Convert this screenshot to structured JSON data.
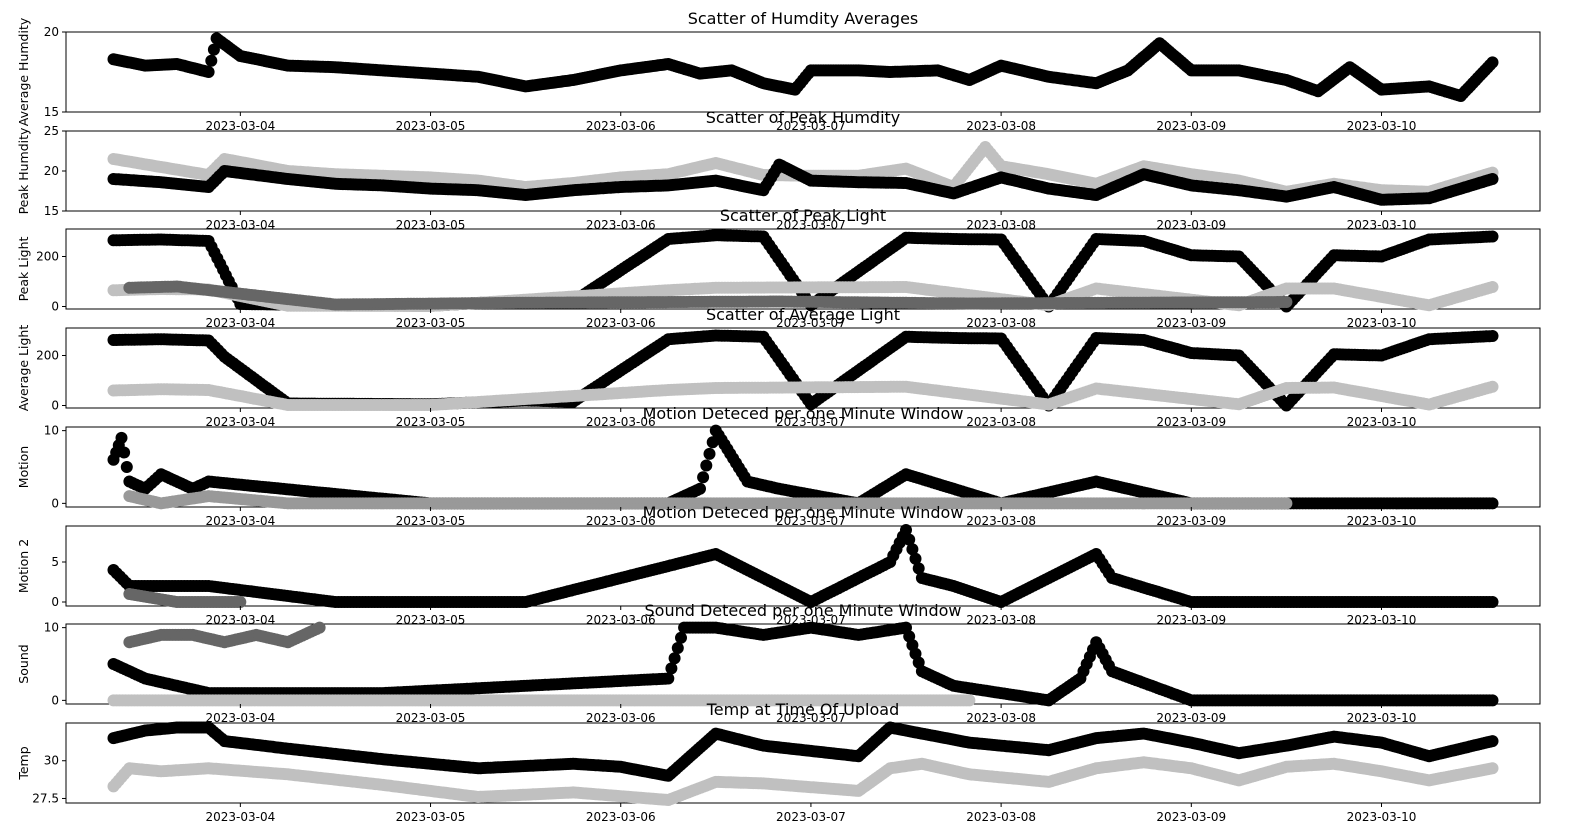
{
  "figure": {
    "x_ticks": [
      "2023-03-04",
      "2023-03-05",
      "2023-03-06",
      "2023-03-07",
      "2023-03-08",
      "2023-03-09",
      "2023-03-10"
    ],
    "x_range": [
      "2023-03-03 02:00",
      "2023-03-10 20:00"
    ]
  },
  "colors": {
    "series_dark": "#000000",
    "series_mid": "#666666",
    "series_light": "#c0c0c0",
    "axes": "#000000",
    "background": "#ffffff"
  },
  "chart_data": [
    {
      "type": "scatter",
      "title": "Scatter of Humdity Averages",
      "ylabel": "Average Humdity",
      "ylim": [
        15,
        20
      ],
      "yticks": [
        15,
        20
      ],
      "series": [
        {
          "color": "#000000",
          "x": [
            "2023-03-03 08:00",
            "2023-03-03 12:00",
            "2023-03-03 16:00",
            "2023-03-03 20:00",
            "2023-03-03 21:00",
            "2023-03-04 00:00",
            "2023-03-04 06:00",
            "2023-03-04 12:00",
            "2023-03-04 18:00",
            "2023-03-05 00:00",
            "2023-03-05 06:00",
            "2023-03-05 12:00",
            "2023-03-05 18:00",
            "2023-03-06 00:00",
            "2023-03-06 06:00",
            "2023-03-06 10:00",
            "2023-03-06 14:00",
            "2023-03-06 18:00",
            "2023-03-06 22:00",
            "2023-03-07 00:00",
            "2023-03-07 06:00",
            "2023-03-07 10:00",
            "2023-03-07 16:00",
            "2023-03-07 20:00",
            "2023-03-08 00:00",
            "2023-03-08 06:00",
            "2023-03-08 12:00",
            "2023-03-08 16:00",
            "2023-03-08 20:00",
            "2023-03-09 00:00",
            "2023-03-09 06:00",
            "2023-03-09 12:00",
            "2023-03-09 16:00",
            "2023-03-09 20:00",
            "2023-03-10 00:00",
            "2023-03-10 06:00",
            "2023-03-10 10:00",
            "2023-03-10 14:00"
          ],
          "y": [
            18.3,
            17.9,
            18.0,
            17.5,
            19.6,
            18.5,
            17.9,
            17.8,
            17.6,
            17.4,
            17.2,
            16.6,
            17.0,
            17.6,
            18.0,
            17.4,
            17.6,
            16.8,
            16.4,
            17.6,
            17.6,
            17.5,
            17.6,
            17.0,
            17.9,
            17.2,
            16.8,
            17.6,
            19.3,
            17.6,
            17.6,
            17.0,
            16.3,
            17.8,
            16.4,
            16.6,
            16.0,
            18.1
          ]
        }
      ]
    },
    {
      "type": "scatter",
      "title": "Scatter of Peak Humdity",
      "ylabel": "Peak Humdity",
      "ylim": [
        15,
        25
      ],
      "yticks": [
        15,
        20,
        25
      ],
      "series": [
        {
          "color": "#c0c0c0",
          "x": [
            "2023-03-03 08:00",
            "2023-03-03 14:00",
            "2023-03-03 20:00",
            "2023-03-03 22:00",
            "2023-03-04 06:00",
            "2023-03-04 12:00",
            "2023-03-04 18:00",
            "2023-03-05 00:00",
            "2023-03-05 06:00",
            "2023-03-05 12:00",
            "2023-03-05 18:00",
            "2023-03-06 00:00",
            "2023-03-06 06:00",
            "2023-03-06 12:00",
            "2023-03-06 18:00",
            "2023-03-07 00:00",
            "2023-03-07 06:00",
            "2023-03-07 12:00",
            "2023-03-07 18:00",
            "2023-03-07 22:00",
            "2023-03-08 00:00",
            "2023-03-08 06:00",
            "2023-03-08 12:00",
            "2023-03-08 18:00",
            "2023-03-09 00:00",
            "2023-03-09 06:00",
            "2023-03-09 12:00",
            "2023-03-09 18:00",
            "2023-03-10 00:00",
            "2023-03-10 06:00",
            "2023-03-10 14:00"
          ],
          "y": [
            21.5,
            20.5,
            19.5,
            21.5,
            20.0,
            19.6,
            19.4,
            19.2,
            18.8,
            18.0,
            18.5,
            19.2,
            19.6,
            21.0,
            19.5,
            19.4,
            19.4,
            20.3,
            18.0,
            23.0,
            20.6,
            19.6,
            18.4,
            20.6,
            19.6,
            18.8,
            17.4,
            18.4,
            17.6,
            17.4,
            19.8
          ]
        },
        {
          "color": "#000000",
          "x": [
            "2023-03-03 08:00",
            "2023-03-03 14:00",
            "2023-03-03 20:00",
            "2023-03-03 22:00",
            "2023-03-04 06:00",
            "2023-03-04 12:00",
            "2023-03-04 18:00",
            "2023-03-05 00:00",
            "2023-03-05 06:00",
            "2023-03-05 12:00",
            "2023-03-05 18:00",
            "2023-03-06 00:00",
            "2023-03-06 06:00",
            "2023-03-06 12:00",
            "2023-03-06 18:00",
            "2023-03-06 20:00",
            "2023-03-07 00:00",
            "2023-03-07 06:00",
            "2023-03-07 12:00",
            "2023-03-07 18:00",
            "2023-03-08 00:00",
            "2023-03-08 06:00",
            "2023-03-08 12:00",
            "2023-03-08 18:00",
            "2023-03-09 00:00",
            "2023-03-09 06:00",
            "2023-03-09 12:00",
            "2023-03-09 18:00",
            "2023-03-10 00:00",
            "2023-03-10 06:00",
            "2023-03-10 14:00"
          ],
          "y": [
            19.0,
            18.6,
            18.0,
            20.0,
            19.0,
            18.4,
            18.2,
            17.8,
            17.6,
            17.0,
            17.6,
            18.0,
            18.2,
            18.8,
            17.6,
            20.8,
            18.8,
            18.6,
            18.5,
            17.2,
            19.2,
            17.8,
            17.0,
            19.6,
            18.2,
            17.6,
            16.8,
            18.0,
            16.4,
            16.6,
            19.0
          ]
        }
      ]
    },
    {
      "type": "scatter",
      "title": "Scatter of Peak Light",
      "ylabel": "Peak Light",
      "ylim": [
        -10,
        310
      ],
      "yticks": [
        0,
        200
      ],
      "series": [
        {
          "color": "#000000",
          "x": [
            "2023-03-03 08:00",
            "2023-03-03 14:00",
            "2023-03-03 20:00",
            "2023-03-04 00:00",
            "2023-03-04 12:00",
            "2023-03-05 00:00",
            "2023-03-05 12:00",
            "2023-03-05 18:00",
            "2023-03-06 06:00",
            "2023-03-06 12:00",
            "2023-03-06 18:00",
            "2023-03-07 00:00",
            "2023-03-07 12:00",
            "2023-03-07 18:00",
            "2023-03-08 00:00",
            "2023-03-08 06:00",
            "2023-03-08 12:00",
            "2023-03-08 18:00",
            "2023-03-09 00:00",
            "2023-03-09 06:00",
            "2023-03-09 12:00",
            "2023-03-09 18:00",
            "2023-03-10 00:00",
            "2023-03-10 06:00",
            "2023-03-10 14:00"
          ],
          "y": [
            265,
            268,
            262,
            10,
            5,
            3,
            25,
            20,
            270,
            285,
            280,
            5,
            275,
            270,
            268,
            0,
            270,
            262,
            205,
            200,
            0,
            205,
            200,
            268,
            280
          ]
        },
        {
          "color": "#c0c0c0",
          "x": [
            "2023-03-03 08:00",
            "2023-03-03 14:00",
            "2023-03-03 20:00",
            "2023-03-04 06:00",
            "2023-03-05 00:00",
            "2023-03-06 06:00",
            "2023-03-06 12:00",
            "2023-03-07 12:00",
            "2023-03-08 06:00",
            "2023-03-08 12:00",
            "2023-03-09 06:00",
            "2023-03-09 12:00",
            "2023-03-09 18:00",
            "2023-03-10 06:00",
            "2023-03-10 14:00"
          ],
          "y": [
            65,
            70,
            68,
            3,
            2,
            65,
            75,
            78,
            5,
            72,
            5,
            72,
            72,
            5,
            78
          ]
        },
        {
          "color": "#666666",
          "x": [
            "2023-03-03 10:00",
            "2023-03-03 16:00",
            "2023-03-04 12:00",
            "2023-03-05 12:00",
            "2023-03-06 20:00",
            "2023-03-07 20:00",
            "2023-03-09 12:00"
          ],
          "y": [
            75,
            80,
            8,
            15,
            20,
            12,
            18
          ]
        }
      ]
    },
    {
      "type": "scatter",
      "title": "Scatter of Average Light",
      "ylabel": "Average Light",
      "ylim": [
        -10,
        310
      ],
      "yticks": [
        0,
        200
      ],
      "series": [
        {
          "color": "#000000",
          "x": [
            "2023-03-03 08:00",
            "2023-03-03 14:00",
            "2023-03-03 20:00",
            "2023-03-03 22:00",
            "2023-03-04 06:00",
            "2023-03-05 00:00",
            "2023-03-05 12:00",
            "2023-03-05 18:00",
            "2023-03-06 06:00",
            "2023-03-06 12:00",
            "2023-03-06 18:00",
            "2023-03-07 00:00",
            "2023-03-07 12:00",
            "2023-03-07 18:00",
            "2023-03-08 00:00",
            "2023-03-08 06:00",
            "2023-03-08 12:00",
            "2023-03-08 18:00",
            "2023-03-09 00:00",
            "2023-03-09 06:00",
            "2023-03-09 12:00",
            "2023-03-09 18:00",
            "2023-03-10 00:00",
            "2023-03-10 06:00",
            "2023-03-10 14:00"
          ],
          "y": [
            262,
            265,
            260,
            195,
            8,
            5,
            20,
            15,
            265,
            280,
            275,
            5,
            275,
            270,
            268,
            0,
            270,
            262,
            210,
            200,
            0,
            205,
            200,
            265,
            278
          ]
        },
        {
          "color": "#c0c0c0",
          "x": [
            "2023-03-03 08:00",
            "2023-03-03 14:00",
            "2023-03-03 20:00",
            "2023-03-04 06:00",
            "2023-03-05 00:00",
            "2023-03-06 06:00",
            "2023-03-06 12:00",
            "2023-03-07 12:00",
            "2023-03-08 06:00",
            "2023-03-08 12:00",
            "2023-03-09 06:00",
            "2023-03-09 12:00",
            "2023-03-09 18:00",
            "2023-03-10 06:00",
            "2023-03-10 14:00"
          ],
          "y": [
            60,
            65,
            62,
            2,
            2,
            62,
            70,
            75,
            4,
            68,
            5,
            70,
            72,
            4,
            75
          ]
        }
      ]
    },
    {
      "type": "scatter",
      "title": "Motion Deteced per one Minute Window",
      "ylabel": "Motion",
      "ylim": [
        -0.5,
        10.5
      ],
      "yticks": [
        0,
        10
      ],
      "series": [
        {
          "color": "#000000",
          "x": [
            "2023-03-03 08:00",
            "2023-03-03 09:00",
            "2023-03-03 10:00",
            "2023-03-03 12:00",
            "2023-03-03 14:00",
            "2023-03-03 18:00",
            "2023-03-03 20:00",
            "2023-03-05 00:00",
            "2023-03-06 06:00",
            "2023-03-06 10:00",
            "2023-03-06 12:00",
            "2023-03-06 16:00",
            "2023-03-06 20:00",
            "2023-03-07 06:00",
            "2023-03-07 12:00",
            "2023-03-07 18:00",
            "2023-03-08 00:00",
            "2023-03-08 12:00",
            "2023-03-09 00:00",
            "2023-03-10 14:00"
          ],
          "y": [
            6,
            9,
            3,
            2,
            4,
            2,
            3,
            0,
            0,
            2,
            10,
            3,
            2,
            0,
            4,
            2,
            0,
            3,
            0,
            0
          ]
        },
        {
          "color": "#999999",
          "x": [
            "2023-03-03 10:00",
            "2023-03-03 14:00",
            "2023-03-03 20:00",
            "2023-03-04 06:00",
            "2023-03-07 18:00",
            "2023-03-08 06:00",
            "2023-03-09 12:00"
          ],
          "y": [
            1,
            0,
            1,
            0,
            0,
            0,
            0
          ]
        }
      ]
    },
    {
      "type": "scatter",
      "title": "Motion Deteced per one Minute Window",
      "ylabel": "Motion 2",
      "ylim": [
        -0.5,
        9.5
      ],
      "yticks": [
        0,
        5
      ],
      "series": [
        {
          "color": "#000000",
          "x": [
            "2023-03-03 08:00",
            "2023-03-03 10:00",
            "2023-03-03 20:00",
            "2023-03-04 12:00",
            "2023-03-05 12:00",
            "2023-03-06 12:00",
            "2023-03-06 18:00",
            "2023-03-07 00:00",
            "2023-03-07 10:00",
            "2023-03-07 12:00",
            "2023-03-07 14:00",
            "2023-03-07 18:00",
            "2023-03-08 00:00",
            "2023-03-08 12:00",
            "2023-03-08 14:00",
            "2023-03-09 00:00",
            "2023-03-10 14:00"
          ],
          "y": [
            4,
            2,
            2,
            0,
            0,
            6,
            3,
            0,
            5,
            9,
            3,
            2,
            0,
            6,
            3,
            0,
            0
          ]
        },
        {
          "color": "#666666",
          "x": [
            "2023-03-03 10:00",
            "2023-03-03 16:00",
            "2023-03-04 00:00"
          ],
          "y": [
            1,
            0,
            0
          ]
        }
      ]
    },
    {
      "type": "scatter",
      "title": "Sound Deteced per one Minute Window",
      "ylabel": "Sound",
      "ylim": [
        -0.5,
        10.5
      ],
      "yticks": [
        0,
        10
      ],
      "series": [
        {
          "color": "#666666",
          "x": [
            "2023-03-03 10:00",
            "2023-03-03 14:00",
            "2023-03-03 18:00",
            "2023-03-03 22:00",
            "2023-03-04 02:00",
            "2023-03-04 06:00",
            "2023-03-04 10:00"
          ],
          "y": [
            8,
            9,
            9,
            8,
            9,
            8,
            10
          ]
        },
        {
          "color": "#000000",
          "x": [
            "2023-03-03 08:00",
            "2023-03-03 12:00",
            "2023-03-03 16:00",
            "2023-03-03 20:00",
            "2023-03-04 18:00",
            "2023-03-06 06:00",
            "2023-03-06 08:00",
            "2023-03-06 12:00",
            "2023-03-06 18:00",
            "2023-03-07 00:00",
            "2023-03-07 06:00",
            "2023-03-07 12:00",
            "2023-03-07 14:00",
            "2023-03-07 18:00",
            "2023-03-08 06:00",
            "2023-03-08 10:00",
            "2023-03-08 12:00",
            "2023-03-08 14:00",
            "2023-03-09 00:00",
            "2023-03-10 14:00"
          ],
          "y": [
            5,
            3,
            2,
            1,
            1,
            3,
            10,
            10,
            9,
            10,
            9,
            10,
            4,
            2,
            0,
            3,
            8,
            4,
            0,
            0
          ]
        },
        {
          "color": "#c0c0c0",
          "x": [
            "2023-03-03 08:00",
            "2023-03-04 06:00",
            "2023-03-05 00:00",
            "2023-03-07 20:00"
          ],
          "y": [
            0,
            0,
            0,
            0
          ]
        }
      ]
    },
    {
      "type": "scatter",
      "title": "Temp at Time Of Upload",
      "ylabel": "Temp",
      "ylim": [
        27.2,
        32.5
      ],
      "yticks": [
        27.5,
        30.0
      ],
      "series": [
        {
          "color": "#000000",
          "x": [
            "2023-03-03 08:00",
            "2023-03-03 12:00",
            "2023-03-03 16:00",
            "2023-03-03 20:00",
            "2023-03-03 22:00",
            "2023-03-04 06:00",
            "2023-03-04 18:00",
            "2023-03-05 06:00",
            "2023-03-05 18:00",
            "2023-03-06 00:00",
            "2023-03-06 06:00",
            "2023-03-06 12:00",
            "2023-03-06 18:00",
            "2023-03-07 06:00",
            "2023-03-07 10:00",
            "2023-03-07 14:00",
            "2023-03-07 20:00",
            "2023-03-08 06:00",
            "2023-03-08 12:00",
            "2023-03-08 18:00",
            "2023-03-09 00:00",
            "2023-03-09 06:00",
            "2023-03-09 12:00",
            "2023-03-09 18:00",
            "2023-03-10 00:00",
            "2023-03-10 06:00",
            "2023-03-10 14:00"
          ],
          "y": [
            31.5,
            32.0,
            32.2,
            32.2,
            31.3,
            30.8,
            30.1,
            29.5,
            29.8,
            29.6,
            29.0,
            31.8,
            31.0,
            30.3,
            32.2,
            31.8,
            31.2,
            30.7,
            31.5,
            31.8,
            31.2,
            30.5,
            31.0,
            31.6,
            31.2,
            30.3,
            31.3
          ]
        },
        {
          "color": "#c0c0c0",
          "x": [
            "2023-03-03 08:00",
            "2023-03-03 10:00",
            "2023-03-03 14:00",
            "2023-03-03 20:00",
            "2023-03-04 06:00",
            "2023-03-04 18:00",
            "2023-03-05 06:00",
            "2023-03-05 18:00",
            "2023-03-06 06:00",
            "2023-03-06 12:00",
            "2023-03-06 18:00",
            "2023-03-07 06:00",
            "2023-03-07 10:00",
            "2023-03-07 14:00",
            "2023-03-07 20:00",
            "2023-03-08 06:00",
            "2023-03-08 12:00",
            "2023-03-08 18:00",
            "2023-03-09 00:00",
            "2023-03-09 06:00",
            "2023-03-09 12:00",
            "2023-03-09 18:00",
            "2023-03-10 00:00",
            "2023-03-10 06:00",
            "2023-03-10 14:00"
          ],
          "y": [
            28.3,
            29.5,
            29.3,
            29.5,
            29.1,
            28.4,
            27.6,
            27.9,
            27.4,
            28.6,
            28.5,
            28.0,
            29.5,
            29.8,
            29.1,
            28.6,
            29.5,
            29.9,
            29.5,
            28.7,
            29.6,
            29.8,
            29.3,
            28.7,
            29.5
          ]
        }
      ]
    }
  ]
}
